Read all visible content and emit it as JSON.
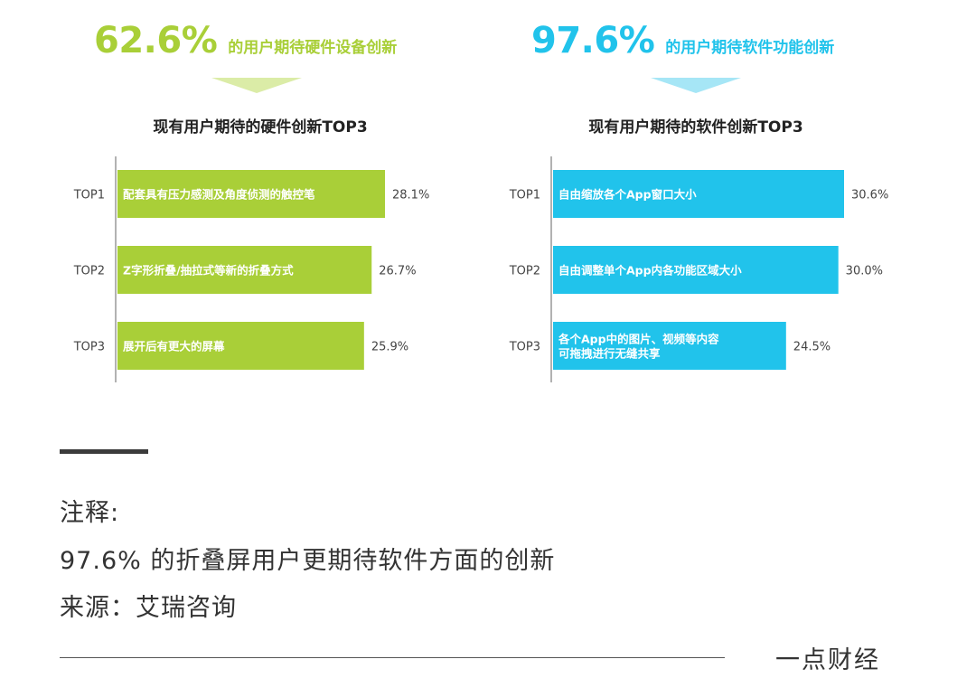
{
  "headlines": [
    {
      "percent": "62.6%",
      "text": "的用户期待硬件设备创新"
    },
    {
      "percent": "97.6%",
      "text": "的用户期待软件功能创新"
    }
  ],
  "colors": {
    "hardware": "#a9cf38",
    "software": "#21c3eb",
    "axis": "#999999"
  },
  "chart_data": [
    {
      "type": "bar",
      "orientation": "horizontal",
      "title": "现有用户期待的硬件创新TOP3",
      "categories": [
        "TOP1",
        "TOP2",
        "TOP3"
      ],
      "bar_labels": [
        [
          "配套具有压力感测及角度侦测的触控笔"
        ],
        [
          "Z字形折叠/抽拉式等新的折叠方式"
        ],
        [
          "展开后有更大的屏幕"
        ]
      ],
      "values": [
        28.1,
        26.7,
        25.9
      ],
      "value_labels": [
        "28.1%",
        "26.7%",
        "25.9%"
      ],
      "xlim": [
        0,
        32
      ],
      "grid": false
    },
    {
      "type": "bar",
      "orientation": "horizontal",
      "title": "现有用户期待的软件创新TOP3",
      "categories": [
        "TOP1",
        "TOP2",
        "TOP3"
      ],
      "bar_labels": [
        [
          "自由缩放各个App窗口大小"
        ],
        [
          "自由调整单个App内各功能区域大小"
        ],
        [
          "各个App中的图片、视频等内容",
          "可拖拽进行无缝共享"
        ]
      ],
      "values": [
        30.6,
        30.0,
        24.5
      ],
      "value_labels": [
        "30.6%",
        "30.0%",
        "24.5%"
      ],
      "xlim": [
        0,
        32
      ],
      "grid": false
    }
  ],
  "notes": {
    "heading": "注释:",
    "line1": "97.6% 的折叠屏用户更期待软件方面的创新",
    "source": "来源：艾瑞咨询"
  },
  "brand": "一点财经"
}
